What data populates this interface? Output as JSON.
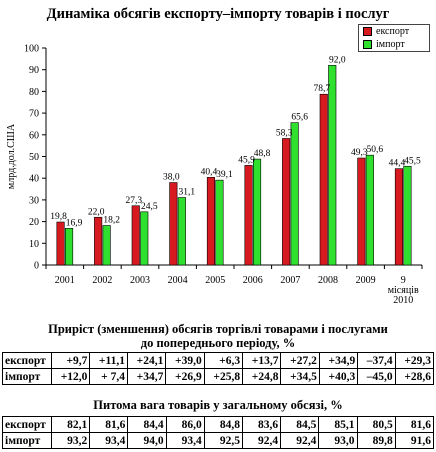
{
  "page": {
    "title": "Динаміка обсягів експорту–імпорту товарів і послуг"
  },
  "chart_data": {
    "type": "bar",
    "title": "Динаміка обсягів експорту–імпорту товарів і послуг",
    "ylabel": "млрд.дол.США",
    "xlabel": "",
    "ylim": [
      0,
      100
    ],
    "yticks": [
      0,
      10,
      20,
      30,
      40,
      50,
      60,
      70,
      80,
      90,
      100
    ],
    "categories": [
      "2001",
      "2002",
      "2003",
      "2004",
      "2005",
      "2006",
      "2007",
      "2008",
      "2009",
      "9 місяців 2010"
    ],
    "category_label_lines": [
      [
        "2001"
      ],
      [
        "2002"
      ],
      [
        "2003"
      ],
      [
        "2004"
      ],
      [
        "2005"
      ],
      [
        "2006"
      ],
      [
        "2007"
      ],
      [
        "2008"
      ],
      [
        "2009"
      ],
      [
        "9",
        "місяців",
        "2010"
      ]
    ],
    "series": [
      {
        "name": "експорт",
        "color": "#d71920",
        "values": [
          19.8,
          22.0,
          27.3,
          38.0,
          40.4,
          45.9,
          58.3,
          78.7,
          49.3,
          44.4
        ],
        "labels": [
          "19,8",
          "22,0",
          "27,3",
          "38,0",
          "40,4",
          "45,9",
          "58,3",
          "78,7",
          "49,3",
          "44,4"
        ]
      },
      {
        "name": "імпорт",
        "color": "#2fe02f",
        "values": [
          16.9,
          18.2,
          24.5,
          31.1,
          39.1,
          48.8,
          65.6,
          92.0,
          50.6,
          45.5
        ],
        "labels": [
          "16,9",
          "18,2",
          "24,5",
          "31,1",
          "39,1",
          "48,8",
          "65,6",
          "92,0",
          "50,6",
          "45,5"
        ]
      }
    ],
    "legend": "top-right",
    "grid": false
  },
  "growth": {
    "title_line1": "Приріст (зменшення) обсягів торгівлі товарами і послугами",
    "title_line2": "до попереднього періоду, %",
    "rows": [
      {
        "label": "експорт",
        "values": [
          "+9,7",
          "+11,1",
          "+24,1",
          "+39,0",
          "+6,3",
          "+13,7",
          "+27,2",
          "+34,9",
          "–37,4",
          "+29,3"
        ]
      },
      {
        "label": "імпорт",
        "values": [
          "+12,0",
          "+ 7,4",
          "+34,7",
          "+26,9",
          "+25,8",
          "+24,8",
          "+34,5",
          "+40,3",
          "–45,0",
          "+28,6"
        ]
      }
    ]
  },
  "share": {
    "title": "Питома вага товарів у загальному обсязі, %",
    "rows": [
      {
        "label": "експорт",
        "values": [
          "82,1",
          "81,6",
          "84,4",
          "86,0",
          "84,8",
          "83,6",
          "84,5",
          "85,1",
          "80,5",
          "81,6"
        ]
      },
      {
        "label": "імпорт",
        "values": [
          "93,2",
          "93,4",
          "94,0",
          "93,4",
          "92,5",
          "92,4",
          "92,4",
          "93,0",
          "89,8",
          "91,6"
        ]
      }
    ]
  }
}
